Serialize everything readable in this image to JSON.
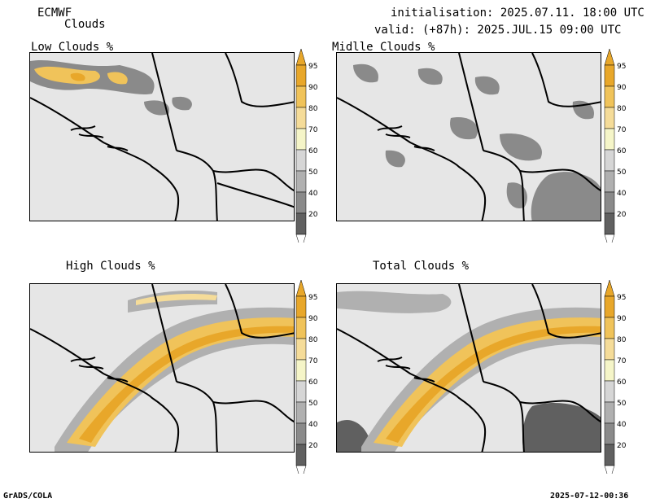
{
  "header": {
    "model": "ECMWF",
    "product": "Clouds",
    "init": "initialisation: 2025.07.11. 18:00 UTC",
    "valid": "valid: (+87h): 2025.JUL.15 09:00 UTC"
  },
  "panels": [
    {
      "title": "Low Clouds %"
    },
    {
      "title": "Midlle Clouds %"
    },
    {
      "title": "High Clouds %"
    },
    {
      "title": "Total Clouds %"
    }
  ],
  "colorbar": {
    "levels": [
      "95",
      "90",
      "80",
      "70",
      "60",
      "50",
      "40",
      "20"
    ],
    "colors": [
      "#e8a72a",
      "#f0c35a",
      "#f5dc99",
      "#f5f5c8",
      "#d6d6d6",
      "#b0b0b0",
      "#8a8a8a",
      "#606060"
    ]
  },
  "footer": {
    "left": "GrADS/COLA",
    "right": "2025-07-12-00:36"
  }
}
